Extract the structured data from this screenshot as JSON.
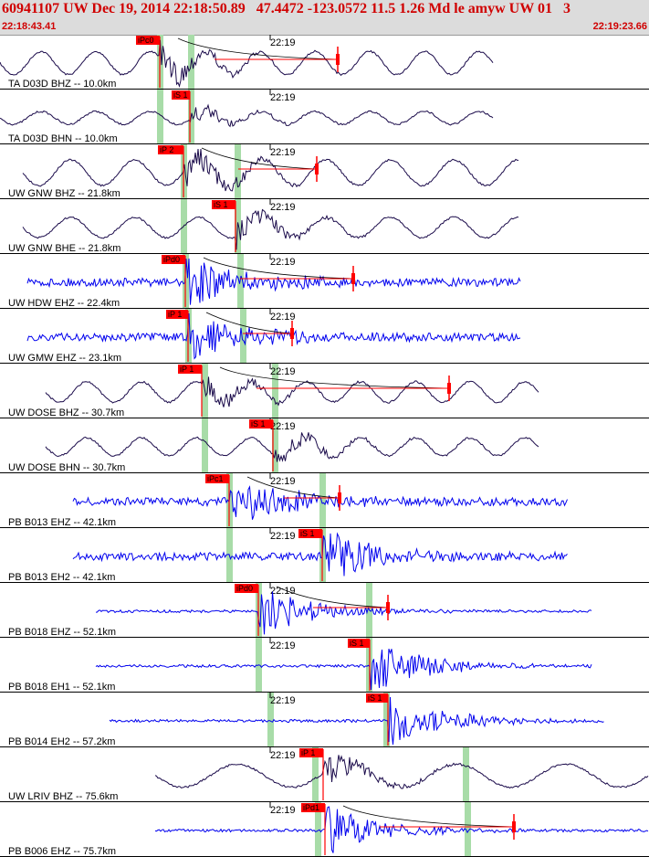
{
  "header": {
    "title": "60941107 UW Dec 19, 2014 22:18:50.89   47.4472 -123.0572 11.5 1.26 Md le amyw UW 01   3",
    "start_time": "22:18:43.41",
    "end_time": "22:19:23.66"
  },
  "colors": {
    "header_bg": "#dcdcdc",
    "header_text": "#d00000",
    "broadband_trace": "#1a0a4a",
    "short_period_trace": "#0000ee",
    "pick_label_bg": "#ff0000",
    "pick_window": "#a8dca8",
    "coda_curve": "#000000"
  },
  "chart_data": {
    "type": "line",
    "xlabel": "",
    "minute_marker_label": "22:19",
    "time_window": [
      "22:18:43.41",
      "22:19:23.66"
    ],
    "series": [
      {
        "label": "TA D03D BHZ -- 10.0km",
        "pick": "iPc0",
        "kind": "broadband"
      },
      {
        "label": "TA D03D BHN -- 10.0km",
        "pick": "iS 1",
        "kind": "broadband"
      },
      {
        "label": "UW GNW BHZ -- 21.8km",
        "pick": "iP 2",
        "kind": "broadband"
      },
      {
        "label": "UW GNW BHE -- 21.8km",
        "pick": "iS 1",
        "kind": "broadband"
      },
      {
        "label": "UW HDW EHZ -- 22.4km",
        "pick": "iPd0",
        "kind": "short"
      },
      {
        "label": "UW GMW EHZ -- 23.1km",
        "pick": "iP 1",
        "kind": "short"
      },
      {
        "label": "UW DOSE BHZ -- 30.7km",
        "pick": "iP 1",
        "kind": "broadband"
      },
      {
        "label": "UW DOSE BHN -- 30.7km",
        "pick": "iS 1",
        "kind": "broadband"
      },
      {
        "label": "PB B013 EHZ -- 42.1km",
        "pick": "iPc1",
        "kind": "short"
      },
      {
        "label": "PB B013 EH2 -- 42.1km",
        "pick": "iS 1",
        "kind": "short"
      },
      {
        "label": "PB B018 EHZ -- 52.1km",
        "pick": "iPd0",
        "kind": "short"
      },
      {
        "label": "PB B018 EH1 -- 52.1km",
        "pick": "iS 1",
        "kind": "short"
      },
      {
        "label": "PB B014 EH2 -- 57.2km",
        "pick": "iS 1",
        "kind": "short"
      },
      {
        "label": "UW LRIV BHZ -- 75.6km",
        "pick": "iP 1",
        "kind": "broadband"
      },
      {
        "label": "PB B006 EHZ -- 75.7km",
        "pick": "iPd1",
        "kind": "short"
      }
    ]
  }
}
